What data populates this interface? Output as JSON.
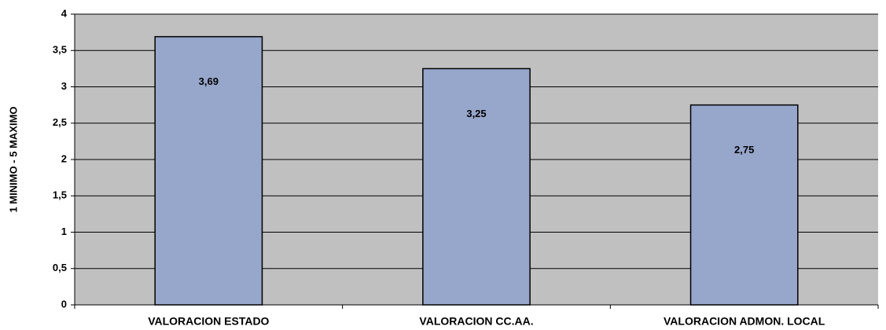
{
  "chart_data": {
    "type": "bar",
    "y_label": "1 MINIMO - 5 MAXIMO",
    "categories": [
      "VALORACION ESTADO",
      "VALORACION CC.AA.",
      "VALORACION ADMON. LOCAL"
    ],
    "values": [
      3.69,
      3.25,
      2.75
    ],
    "value_labels": [
      "3,69",
      "3,25",
      "2,75"
    ],
    "color": "#97a6cb",
    "ylim": [
      0,
      4
    ],
    "yticks": [
      0,
      {
        "value": 0.5,
        "label": "0,5"
      },
      1,
      {
        "value": 1.5,
        "label": "1,5"
      },
      2,
      {
        "value": 2.5,
        "label": "2,5"
      },
      3,
      {
        "value": 3.5,
        "label": "3,5"
      },
      4
    ],
    "grid": true
  }
}
